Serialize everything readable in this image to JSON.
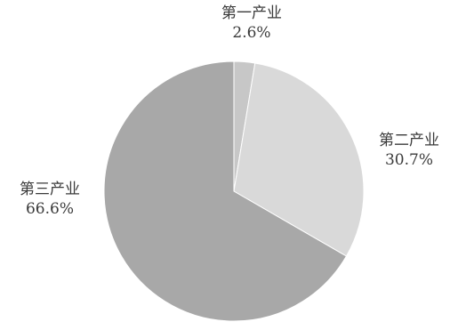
{
  "chart_data": {
    "type": "pie",
    "slices": [
      {
        "label": "第一产业",
        "value": 2.6,
        "value_text": "2.6%",
        "color": "#c7c7c7"
      },
      {
        "label": "第二产业",
        "value": 30.7,
        "value_text": "30.7%",
        "color": "#d9d9d9"
      },
      {
        "label": "第三产业",
        "value": 66.6,
        "value_text": "66.6%",
        "color": "#a8a8a8"
      }
    ],
    "start": "top",
    "direction": "clockwise",
    "legend": "none",
    "data_labels": "outside"
  }
}
